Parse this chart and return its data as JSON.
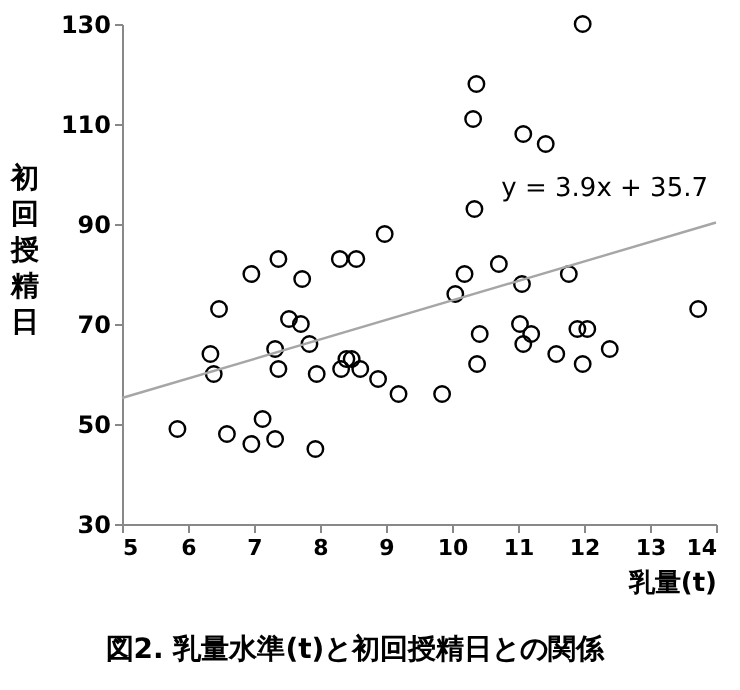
{
  "chart_data": {
    "type": "scatter",
    "title": "図2. 乳量水準(t)と初回授精日との関係",
    "xlabel": "乳量(t)",
    "ylabel": "初回授精日",
    "annotations": [
      "y = 3.9x + 35.7"
    ],
    "xlim": [
      5,
      14
    ],
    "xticks": [
      5,
      6,
      7,
      8,
      9,
      10,
      11,
      12,
      13,
      14
    ],
    "ylim": [
      30,
      130
    ],
    "yticks": [
      30,
      50,
      70,
      90,
      110,
      130
    ],
    "grid": false,
    "series": [
      {
        "type": "scatter",
        "marker": "circle",
        "color": "#000000",
        "x": [
          5.84,
          6.47,
          6.34,
          6.39,
          6.59,
          6.96,
          6.96,
          7.13,
          7.37,
          7.32,
          7.37,
          7.32,
          7.53,
          7.71,
          7.73,
          7.84,
          7.95,
          7.93,
          8.3,
          8.55,
          8.98,
          8.32,
          8.4,
          8.48,
          8.61,
          8.88,
          9.19,
          9.85,
          11.98,
          10.37,
          10.32,
          11.08,
          11.42,
          10.34,
          10.71,
          10.19,
          10.05,
          11.06,
          11.77,
          13.73,
          10.42,
          11.03,
          11.2,
          11.08,
          11.9,
          12.05,
          11.58,
          12.39,
          10.38,
          11.98
        ],
        "values": [
          49,
          73,
          64,
          60,
          48,
          80,
          46,
          51,
          83,
          65,
          61,
          47,
          71,
          70,
          79,
          66,
          60,
          45,
          83,
          83,
          88,
          61,
          63,
          63,
          61,
          59,
          56,
          56,
          130,
          118,
          111,
          108,
          106,
          93,
          82,
          80,
          76,
          78,
          80,
          73,
          68,
          70,
          68,
          66,
          69,
          69,
          64,
          65,
          62,
          62
        ]
      },
      {
        "type": "line",
        "color": "#a6a6a6",
        "x": [
          5,
          14
        ],
        "values": [
          55.2,
          90.3
        ]
      }
    ]
  }
}
